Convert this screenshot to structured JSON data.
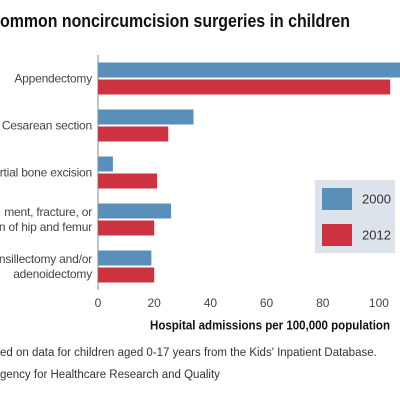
{
  "chart_data": {
    "type": "hbar",
    "title": "ommon noncircumcision surgeries in children",
    "categories": [
      "Appendectomy",
      "Cesarean section",
      "rtial bone excision",
      "ment, fracture, or\nn of hip and femur",
      "nsillectomy and/or\nadenoidectomy"
    ],
    "series": [
      {
        "name": "2000",
        "color": "#5a8fba",
        "values": [
          108,
          34,
          5.3,
          26,
          19
        ]
      },
      {
        "name": "2012",
        "color": "#cc3240",
        "values": [
          104,
          25,
          21,
          20,
          20
        ]
      }
    ],
    "xlim": [
      0,
      107.5
    ],
    "xticks": [
      0,
      20,
      40,
      60,
      80,
      100
    ],
    "xlabel": "Hospital admissions per 100,000 population",
    "notes": [
      "ed on data for children aged 0-17 years from the Kids' Inpatient Database.",
      "gency for Healthcare Research and Quality"
    ],
    "legend": "right",
    "grid": false
  }
}
